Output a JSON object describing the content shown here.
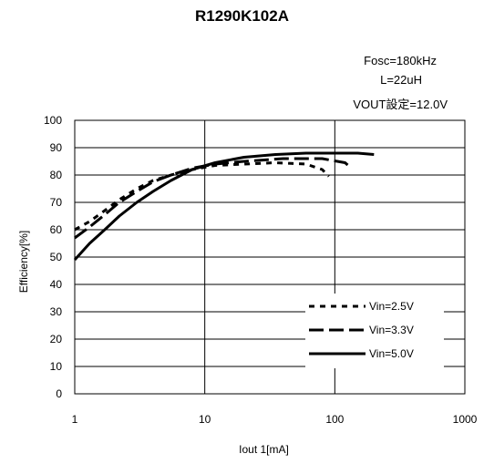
{
  "chart_data": {
    "type": "line",
    "title": "R1290K102A",
    "annotations": [
      "Fosc=180kHz",
      "L=22uH",
      "VOUT設定=12.0V"
    ],
    "xlabel": "Iout 1[mA]",
    "ylabel": "Efficiency[%]",
    "xscale": "log",
    "xlim": [
      1,
      1000
    ],
    "ylim": [
      0,
      100
    ],
    "xticks": [
      "1",
      "10",
      "100",
      "1000"
    ],
    "yticks": [
      "0",
      "10",
      "20",
      "30",
      "40",
      "50",
      "60",
      "70",
      "80",
      "90",
      "100"
    ],
    "grid": true,
    "legend_position": "bottom-right",
    "series": [
      {
        "name": "Vin=2.5V",
        "style": "dotted",
        "x": [
          1,
          1.3,
          1.7,
          2.2,
          3,
          4,
          5.5,
          8,
          12,
          20,
          35,
          60,
          80,
          90
        ],
        "y": [
          60,
          63,
          67,
          71,
          75,
          78,
          80,
          82,
          83.5,
          84,
          84.5,
          84,
          82,
          79.5
        ]
      },
      {
        "name": "Vin=3.3V",
        "style": "dashed",
        "x": [
          1,
          1.3,
          1.7,
          2.2,
          3,
          4,
          5.5,
          8,
          12,
          20,
          40,
          80,
          120,
          130
        ],
        "y": [
          57,
          61,
          65.5,
          70,
          74,
          77.5,
          80,
          82.5,
          84,
          85,
          86,
          86,
          84.5,
          83
        ]
      },
      {
        "name": "Vin=5.0V",
        "style": "solid",
        "x": [
          1,
          1.3,
          1.7,
          2.2,
          3,
          4,
          5.5,
          8,
          12,
          20,
          35,
          60,
          100,
          150,
          200
        ],
        "y": [
          49,
          55,
          60,
          65,
          70,
          74,
          78,
          82,
          84.5,
          86.5,
          87.5,
          88,
          88,
          88,
          87.5
        ]
      }
    ]
  }
}
